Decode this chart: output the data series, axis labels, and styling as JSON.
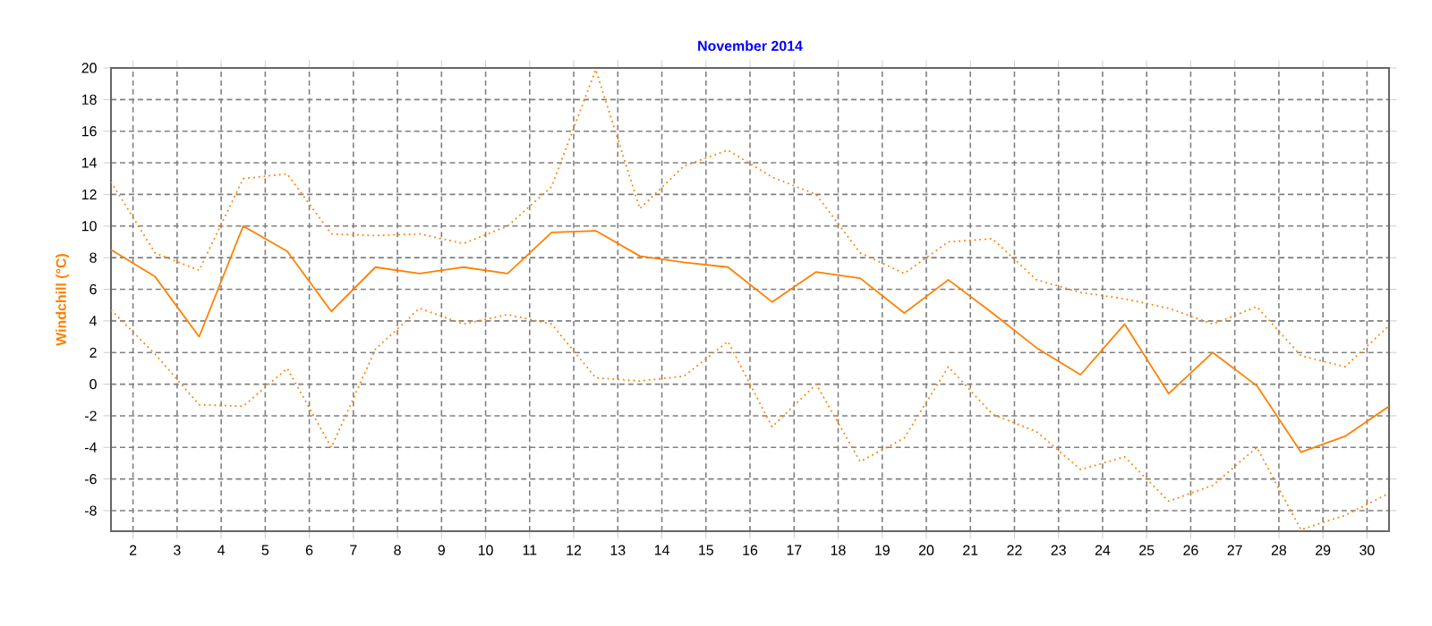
{
  "chart_data": {
    "type": "line",
    "title": "November 2014",
    "ylabel": "Windchill  (°C)",
    "x": [
      1.5,
      2.5,
      3.5,
      4.5,
      5.5,
      6.5,
      7.5,
      8.5,
      9.5,
      10.5,
      11.5,
      12.5,
      13.5,
      14.5,
      15.5,
      16.5,
      17.5,
      18.5,
      19.5,
      20.5,
      21.5,
      22.5,
      23.5,
      24.5,
      25.5,
      26.5,
      27.5,
      28.5,
      29.5,
      30.5
    ],
    "series": [
      {
        "color": "#ff8000",
        "line_style": "dotted",
        "values": [
          12.8,
          8.3,
          7.2,
          13.0,
          13.3,
          9.5,
          9.4,
          9.5,
          8.9,
          10.0,
          12.5,
          19.9,
          11.1,
          13.8,
          14.8,
          13.1,
          12.0,
          8.3,
          7.0,
          9.0,
          9.2,
          6.6,
          5.8,
          5.4,
          4.8,
          3.8,
          4.9,
          1.8,
          1.1,
          3.7
        ]
      },
      {
        "color": "#ff8000",
        "line_style": "solid",
        "values": [
          8.5,
          6.8,
          3.0,
          10.0,
          8.4,
          4.6,
          7.4,
          7.0,
          7.4,
          7.0,
          9.6,
          9.7,
          8.1,
          7.7,
          7.4,
          5.2,
          7.1,
          6.7,
          4.5,
          6.6,
          4.5,
          2.3,
          0.6,
          3.8,
          -0.6,
          2.0,
          -0.1,
          -4.3,
          -3.3,
          -1.4
        ]
      },
      {
        "color": "#ff8000",
        "line_style": "dotted",
        "values": [
          4.7,
          1.9,
          -1.3,
          -1.4,
          1.0,
          -4.0,
          2.2,
          4.8,
          3.8,
          4.4,
          3.8,
          0.4,
          0.2,
          0.5,
          2.7,
          -2.7,
          0.0,
          -4.9,
          -3.4,
          1.1,
          -1.9,
          -3.0,
          -5.4,
          -4.6,
          -7.4,
          -6.4,
          -4.0,
          -9.2,
          -8.3,
          -6.9
        ]
      }
    ],
    "xlim": [
      1.5,
      30.5
    ],
    "ylim": [
      -9.3,
      20
    ],
    "xticks": [
      2,
      3,
      4,
      5,
      6,
      7,
      8,
      9,
      10,
      11,
      12,
      13,
      14,
      15,
      16,
      17,
      18,
      19,
      20,
      21,
      22,
      23,
      24,
      25,
      26,
      27,
      28,
      29,
      30
    ],
    "yticks": [
      -8,
      -6,
      -4,
      -2,
      0,
      2,
      4,
      6,
      8,
      10,
      12,
      14,
      16,
      18,
      20
    ],
    "grid": true,
    "marker": "none"
  }
}
